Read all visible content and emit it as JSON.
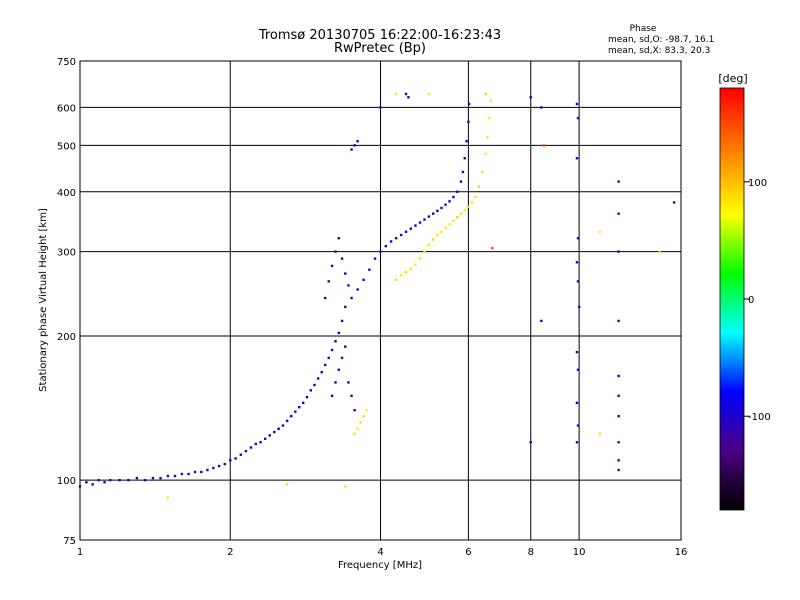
{
  "chart_data": {
    "type": "scatter",
    "title": "Tromsø 20130705 16:22:00-16:23:43",
    "subtitle": "RwPretec (Bp)",
    "xlabel": "Frequency [MHz]",
    "ylabel": "Stationary phase Virtual Height [km]",
    "x_scale": "log",
    "y_scale": "log",
    "xlim": [
      1,
      16
    ],
    "ylim": [
      75,
      750
    ],
    "x_ticks": [
      "1",
      "2",
      "4",
      "6",
      "8",
      "10",
      "16"
    ],
    "x_tick_values": [
      1,
      2,
      4,
      6,
      8,
      10,
      16
    ],
    "y_ticks": [
      "75",
      "100",
      "200",
      "300",
      "400",
      "500",
      "600",
      "750"
    ],
    "y_tick_values": [
      75,
      100,
      200,
      300,
      400,
      500,
      600,
      750
    ],
    "grid": true,
    "phase_info": {
      "title": "Phase",
      "line_o": "mean, sd,O: -98.7, 16.1",
      "line_x": "mean, sd,X:  83.3, 20.3"
    },
    "colorbar": {
      "label": "[deg]",
      "min": -180,
      "max": 180,
      "ticks": [
        "100",
        "0",
        "-100"
      ],
      "tick_values": [
        100,
        0,
        -100
      ]
    },
    "series": [
      {
        "mode": "O",
        "points": [
          {
            "x": 1.0,
            "y": 97,
            "p": -105
          },
          {
            "x": 1.03,
            "y": 99,
            "p": -100
          },
          {
            "x": 1.06,
            "y": 98,
            "p": -110
          },
          {
            "x": 1.09,
            "y": 100,
            "p": -95
          },
          {
            "x": 1.12,
            "y": 99,
            "p": -100
          },
          {
            "x": 1.15,
            "y": 100,
            "p": -105
          },
          {
            "x": 1.2,
            "y": 100,
            "p": -100
          },
          {
            "x": 1.25,
            "y": 100,
            "p": -95
          },
          {
            "x": 1.3,
            "y": 101,
            "p": -100
          },
          {
            "x": 1.35,
            "y": 100,
            "p": -100
          },
          {
            "x": 1.4,
            "y": 101,
            "p": -105
          },
          {
            "x": 1.45,
            "y": 101,
            "p": -95
          },
          {
            "x": 1.5,
            "y": 102,
            "p": -100
          },
          {
            "x": 1.55,
            "y": 102,
            "p": -100
          },
          {
            "x": 1.6,
            "y": 103,
            "p": -90
          },
          {
            "x": 1.65,
            "y": 103,
            "p": -100
          },
          {
            "x": 1.7,
            "y": 104,
            "p": -100
          },
          {
            "x": 1.75,
            "y": 104,
            "p": -95
          },
          {
            "x": 1.8,
            "y": 105,
            "p": -100
          },
          {
            "x": 1.85,
            "y": 106,
            "p": -100
          },
          {
            "x": 1.9,
            "y": 107,
            "p": -105
          },
          {
            "x": 1.95,
            "y": 108,
            "p": -100
          },
          {
            "x": 2.0,
            "y": 110,
            "p": -100
          },
          {
            "x": 2.05,
            "y": 111,
            "p": -95
          },
          {
            "x": 2.1,
            "y": 113,
            "p": -100
          },
          {
            "x": 2.15,
            "y": 115,
            "p": -100
          },
          {
            "x": 2.2,
            "y": 117,
            "p": -90
          },
          {
            "x": 2.25,
            "y": 119,
            "p": -100
          },
          {
            "x": 2.3,
            "y": 120,
            "p": -100
          },
          {
            "x": 2.35,
            "y": 122,
            "p": -95
          },
          {
            "x": 2.4,
            "y": 124,
            "p": -100
          },
          {
            "x": 2.45,
            "y": 126,
            "p": -100
          },
          {
            "x": 2.5,
            "y": 128,
            "p": -80
          },
          {
            "x": 2.55,
            "y": 130,
            "p": -100
          },
          {
            "x": 2.6,
            "y": 133,
            "p": -100
          },
          {
            "x": 2.65,
            "y": 136,
            "p": -85
          },
          {
            "x": 2.7,
            "y": 139,
            "p": -100
          },
          {
            "x": 2.75,
            "y": 142,
            "p": -100
          },
          {
            "x": 2.8,
            "y": 145,
            "p": -95
          },
          {
            "x": 2.85,
            "y": 149,
            "p": -100
          },
          {
            "x": 2.9,
            "y": 154,
            "p": -100
          },
          {
            "x": 2.95,
            "y": 158,
            "p": -105
          },
          {
            "x": 3.0,
            "y": 163,
            "p": -100
          },
          {
            "x": 3.05,
            "y": 168,
            "p": -100
          },
          {
            "x": 3.1,
            "y": 174,
            "p": -110
          },
          {
            "x": 3.15,
            "y": 180,
            "p": -100
          },
          {
            "x": 3.2,
            "y": 187,
            "p": -105
          },
          {
            "x": 3.25,
            "y": 195,
            "p": -100
          },
          {
            "x": 3.3,
            "y": 203,
            "p": -100
          },
          {
            "x": 3.35,
            "y": 215,
            "p": -110
          },
          {
            "x": 3.4,
            "y": 230,
            "p": -115
          },
          {
            "x": 3.5,
            "y": 240,
            "p": -110
          },
          {
            "x": 3.6,
            "y": 250,
            "p": -105
          },
          {
            "x": 3.7,
            "y": 262,
            "p": -100
          },
          {
            "x": 3.8,
            "y": 275,
            "p": -100
          },
          {
            "x": 3.9,
            "y": 290,
            "p": -100
          },
          {
            "x": 4.0,
            "y": 300,
            "p": -100
          },
          {
            "x": 4.1,
            "y": 308,
            "p": -100
          },
          {
            "x": 4.2,
            "y": 315,
            "p": -95
          },
          {
            "x": 4.3,
            "y": 320,
            "p": -100
          },
          {
            "x": 4.4,
            "y": 325,
            "p": -100
          },
          {
            "x": 4.5,
            "y": 330,
            "p": -105
          },
          {
            "x": 4.6,
            "y": 335,
            "p": -100
          },
          {
            "x": 4.7,
            "y": 340,
            "p": -100
          },
          {
            "x": 4.8,
            "y": 345,
            "p": -95
          },
          {
            "x": 4.9,
            "y": 350,
            "p": -100
          },
          {
            "x": 5.0,
            "y": 355,
            "p": -100
          },
          {
            "x": 5.1,
            "y": 360,
            "p": -100
          },
          {
            "x": 5.2,
            "y": 365,
            "p": -105
          },
          {
            "x": 5.3,
            "y": 370,
            "p": -100
          },
          {
            "x": 5.4,
            "y": 376,
            "p": -100
          },
          {
            "x": 5.5,
            "y": 382,
            "p": -95
          },
          {
            "x": 5.6,
            "y": 390,
            "p": -100
          },
          {
            "x": 5.7,
            "y": 400,
            "p": -100
          },
          {
            "x": 5.8,
            "y": 420,
            "p": -105
          },
          {
            "x": 5.85,
            "y": 440,
            "p": -100
          },
          {
            "x": 5.9,
            "y": 470,
            "p": -100
          },
          {
            "x": 5.95,
            "y": 510,
            "p": -100
          },
          {
            "x": 6.0,
            "y": 560,
            "p": -105
          },
          {
            "x": 6.02,
            "y": 610,
            "p": -100
          },
          {
            "x": 3.1,
            "y": 240,
            "p": -115
          },
          {
            "x": 3.15,
            "y": 260,
            "p": -120
          },
          {
            "x": 3.2,
            "y": 280,
            "p": -110
          },
          {
            "x": 3.25,
            "y": 300,
            "p": -115
          },
          {
            "x": 3.3,
            "y": 320,
            "p": -110
          },
          {
            "x": 3.35,
            "y": 290,
            "p": -120
          },
          {
            "x": 3.4,
            "y": 270,
            "p": -115
          },
          {
            "x": 3.45,
            "y": 255,
            "p": -110
          },
          {
            "x": 3.2,
            "y": 150,
            "p": -110
          },
          {
            "x": 3.25,
            "y": 160,
            "p": -105
          },
          {
            "x": 3.3,
            "y": 170,
            "p": -110
          },
          {
            "x": 3.35,
            "y": 180,
            "p": -115
          },
          {
            "x": 3.4,
            "y": 190,
            "p": -110
          },
          {
            "x": 3.45,
            "y": 160,
            "p": -105
          },
          {
            "x": 3.5,
            "y": 150,
            "p": -110
          },
          {
            "x": 3.55,
            "y": 140,
            "p": -100
          },
          {
            "x": 3.5,
            "y": 490,
            "p": -100
          },
          {
            "x": 3.55,
            "y": 500,
            "p": -100
          },
          {
            "x": 3.6,
            "y": 510,
            "p": -105
          },
          {
            "x": 4.0,
            "y": 600,
            "p": -100
          },
          {
            "x": 4.5,
            "y": 640,
            "p": -100
          },
          {
            "x": 4.55,
            "y": 630,
            "p": -100
          },
          {
            "x": 8.0,
            "y": 630,
            "p": -100
          },
          {
            "x": 8.4,
            "y": 600,
            "p": -110
          },
          {
            "x": 9.9,
            "y": 610,
            "p": -100
          },
          {
            "x": 9.95,
            "y": 570,
            "p": -105
          },
          {
            "x": 9.9,
            "y": 470,
            "p": -100
          },
          {
            "x": 9.95,
            "y": 320,
            "p": -100
          },
          {
            "x": 9.9,
            "y": 285,
            "p": -105
          },
          {
            "x": 9.95,
            "y": 260,
            "p": -100
          },
          {
            "x": 10.0,
            "y": 230,
            "p": -100
          },
          {
            "x": 9.9,
            "y": 185,
            "p": -105
          },
          {
            "x": 9.95,
            "y": 170,
            "p": -100
          },
          {
            "x": 9.9,
            "y": 145,
            "p": -100
          },
          {
            "x": 9.95,
            "y": 130,
            "p": -100
          },
          {
            "x": 9.9,
            "y": 120,
            "p": -105
          },
          {
            "x": 8.0,
            "y": 120,
            "p": -100
          },
          {
            "x": 8.4,
            "y": 215,
            "p": -100
          },
          {
            "x": 12.0,
            "y": 420,
            "p": -110
          },
          {
            "x": 12.0,
            "y": 360,
            "p": -100
          },
          {
            "x": 12.0,
            "y": 300,
            "p": -105
          },
          {
            "x": 12.0,
            "y": 215,
            "p": -100
          },
          {
            "x": 12.0,
            "y": 165,
            "p": -100
          },
          {
            "x": 12.0,
            "y": 150,
            "p": -105
          },
          {
            "x": 12.0,
            "y": 136,
            "p": -100
          },
          {
            "x": 12.0,
            "y": 120,
            "p": -100
          },
          {
            "x": 12.0,
            "y": 110,
            "p": -105
          },
          {
            "x": 12.0,
            "y": 105,
            "p": -100
          },
          {
            "x": 15.5,
            "y": 380,
            "p": -100
          }
        ]
      },
      {
        "mode": "X",
        "points": [
          {
            "x": 3.55,
            "y": 125,
            "p": 85
          },
          {
            "x": 3.6,
            "y": 128,
            "p": 80
          },
          {
            "x": 3.65,
            "y": 132,
            "p": 85
          },
          {
            "x": 3.7,
            "y": 136,
            "p": 90
          },
          {
            "x": 3.75,
            "y": 140,
            "p": 80
          },
          {
            "x": 4.3,
            "y": 262,
            "p": 85
          },
          {
            "x": 4.4,
            "y": 268,
            "p": 80
          },
          {
            "x": 4.5,
            "y": 272,
            "p": 90
          },
          {
            "x": 4.6,
            "y": 276,
            "p": 85
          },
          {
            "x": 4.7,
            "y": 282,
            "p": 80
          },
          {
            "x": 4.8,
            "y": 290,
            "p": 85
          },
          {
            "x": 4.9,
            "y": 300,
            "p": 80
          },
          {
            "x": 5.0,
            "y": 310,
            "p": 85
          },
          {
            "x": 5.1,
            "y": 318,
            "p": 90
          },
          {
            "x": 5.2,
            "y": 325,
            "p": 85
          },
          {
            "x": 5.3,
            "y": 330,
            "p": 80
          },
          {
            "x": 5.4,
            "y": 336,
            "p": 85
          },
          {
            "x": 5.5,
            "y": 342,
            "p": 80
          },
          {
            "x": 5.6,
            "y": 348,
            "p": 85
          },
          {
            "x": 5.7,
            "y": 354,
            "p": 90
          },
          {
            "x": 5.8,
            "y": 360,
            "p": 85
          },
          {
            "x": 5.9,
            "y": 366,
            "p": 80
          },
          {
            "x": 6.0,
            "y": 372,
            "p": 85
          },
          {
            "x": 6.1,
            "y": 380,
            "p": 80
          },
          {
            "x": 6.2,
            "y": 390,
            "p": 85
          },
          {
            "x": 6.3,
            "y": 410,
            "p": 90
          },
          {
            "x": 6.4,
            "y": 440,
            "p": 85
          },
          {
            "x": 6.5,
            "y": 480,
            "p": 80
          },
          {
            "x": 6.55,
            "y": 520,
            "p": 85
          },
          {
            "x": 6.6,
            "y": 570,
            "p": 80
          },
          {
            "x": 6.65,
            "y": 620,
            "p": 85
          },
          {
            "x": 1.5,
            "y": 92,
            "p": 80
          },
          {
            "x": 2.6,
            "y": 98,
            "p": 85
          },
          {
            "x": 3.4,
            "y": 97,
            "p": 60
          },
          {
            "x": 11.0,
            "y": 330,
            "p": 80
          },
          {
            "x": 11.0,
            "y": 125,
            "p": 85
          },
          {
            "x": 14.5,
            "y": 300,
            "p": 90
          },
          {
            "x": 6.7,
            "y": 305,
            "p": 150
          },
          {
            "x": 4.3,
            "y": 640,
            "p": 80
          },
          {
            "x": 5.0,
            "y": 640,
            "p": 85
          },
          {
            "x": 6.5,
            "y": 640,
            "p": 90
          },
          {
            "x": 8.5,
            "y": 500,
            "p": 150
          }
        ]
      }
    ]
  }
}
